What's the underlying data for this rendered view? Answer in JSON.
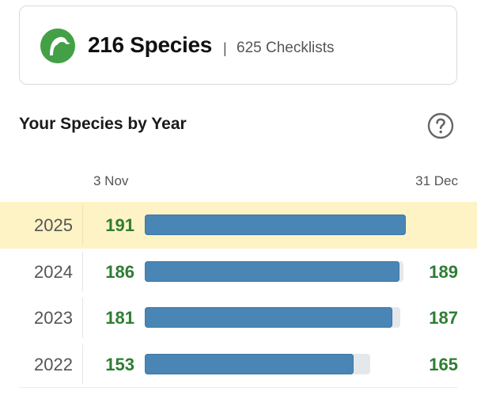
{
  "summary": {
    "species_count": "216 Species",
    "separator": "|",
    "checklist_count": "625 Checklists"
  },
  "section": {
    "title": "Your Species by Year"
  },
  "date_range": {
    "start": "3 Nov",
    "end": "31 Dec"
  },
  "colors": {
    "bar_fill": "#4a86b5",
    "bar_track": "#e5e8eb",
    "count_green": "#2e7d32",
    "current_highlight": "#fdf3c5",
    "logo_green": "#43a047"
  },
  "icons": {
    "logo": "ebird-logo",
    "help": "question-circle-icon"
  },
  "years": [
    {
      "year": "2025",
      "count_to_date": "191",
      "total": "",
      "current": true
    },
    {
      "year": "2024",
      "count_to_date": "186",
      "total": "189",
      "current": false
    },
    {
      "year": "2023",
      "count_to_date": "181",
      "total": "187",
      "current": false
    },
    {
      "year": "2022",
      "count_to_date": "153",
      "total": "165",
      "current": false
    }
  ]
}
